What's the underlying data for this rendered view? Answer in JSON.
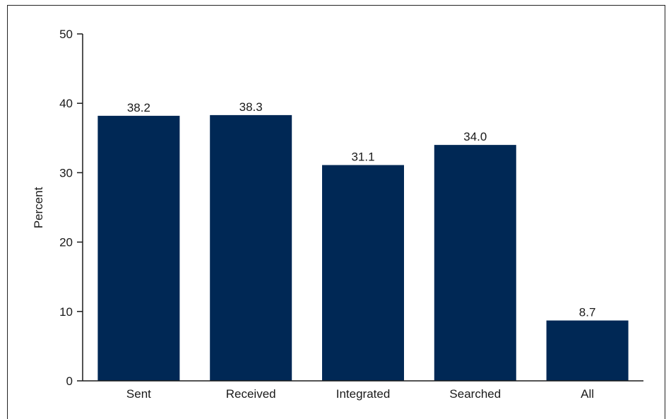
{
  "chart_data": {
    "type": "bar",
    "categories": [
      "Sent",
      "Received",
      "Integrated",
      "Searched",
      "All"
    ],
    "values": [
      38.2,
      38.3,
      31.1,
      34.0,
      8.7
    ],
    "value_labels": [
      "38.2",
      "38.3",
      "31.1",
      "34.0",
      "8.7"
    ],
    "title": "",
    "xlabel": "",
    "ylabel": "Percent",
    "ylim": [
      0,
      50
    ],
    "yticks": [
      0,
      10,
      20,
      30,
      40,
      50
    ],
    "grid": false,
    "legend": "none",
    "bar_color": "#002855"
  }
}
